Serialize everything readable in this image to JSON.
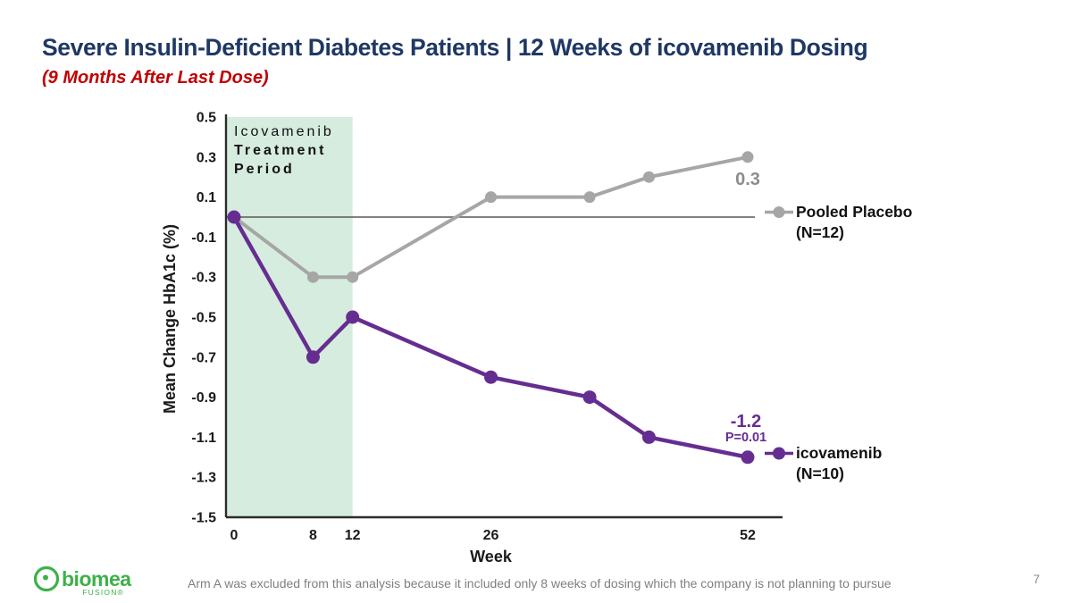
{
  "slide": {
    "title": "Severe Insulin-Deficient Diabetes Patients | 12 Weeks of icovamenib Dosing",
    "subtitle": "(9 Months After Last Dose)",
    "footnote": "Arm A was excluded from this analysis because it included only 8 weeks of dosing which the company is not planning to pursue",
    "page_number": "7"
  },
  "logo": {
    "brand": "biomea",
    "sub_brand": "FUSION®"
  },
  "colors": {
    "title_navy": "#1f3864",
    "subtitle_red": "#c00000",
    "placebo_gray": "#a6a6a6",
    "icovamenib_purple": "#662d91",
    "treatment_green": "#d5ecdf",
    "logo_green": "#3db149"
  },
  "legend": {
    "items": [
      {
        "label": "Pooled Placebo",
        "n": "(N=12)",
        "color": "#a6a6a6"
      },
      {
        "label": "icovamenib",
        "n": "(N=10)",
        "color": "#662d91"
      }
    ]
  },
  "chart_data": {
    "type": "line",
    "xlabel": "Week",
    "ylabel": "Mean Change HbA1c (%)",
    "xlim": [
      0,
      52
    ],
    "ylim": [
      -1.5,
      0.5
    ],
    "x_ticks": [
      0,
      8,
      12,
      26,
      52
    ],
    "y_ticks": [
      0.5,
      0.3,
      0.1,
      -0.1,
      -0.3,
      -0.5,
      -0.7,
      -0.9,
      -1.1,
      -1.3,
      -1.5
    ],
    "grid": false,
    "zero_line": true,
    "x": [
      0,
      8,
      12,
      26,
      36,
      42,
      52
    ],
    "series": [
      {
        "id": "pooled-placebo",
        "name": "Pooled Placebo (N=12)",
        "color": "#a6a6a6",
        "stroke_width": 4,
        "marker_radius": 6.5,
        "values": [
          0,
          -0.3,
          -0.3,
          0.1,
          0.1,
          0.2,
          0.3
        ]
      },
      {
        "id": "icovamenib",
        "name": "icovamenib (N=10)",
        "color": "#662d91",
        "stroke_width": 4.5,
        "marker_radius": 7.5,
        "values": [
          0,
          -0.7,
          -0.5,
          -0.8,
          -0.9,
          -1.1,
          -1.2
        ]
      }
    ],
    "treatment_period": {
      "label_lines": [
        "Icovamenib",
        "Treatment",
        "Period"
      ],
      "x_range": [
        0,
        12
      ],
      "fill": "#d5ecdf"
    },
    "annotations": [
      {
        "text": "0.3",
        "series": "pooled-placebo",
        "color": "#8c8c8c"
      },
      {
        "text": "-1.2",
        "series": "icovamenib",
        "color": "#662d91"
      },
      {
        "text": "P=0.01",
        "series": "icovamenib",
        "color": "#662d91"
      }
    ]
  }
}
